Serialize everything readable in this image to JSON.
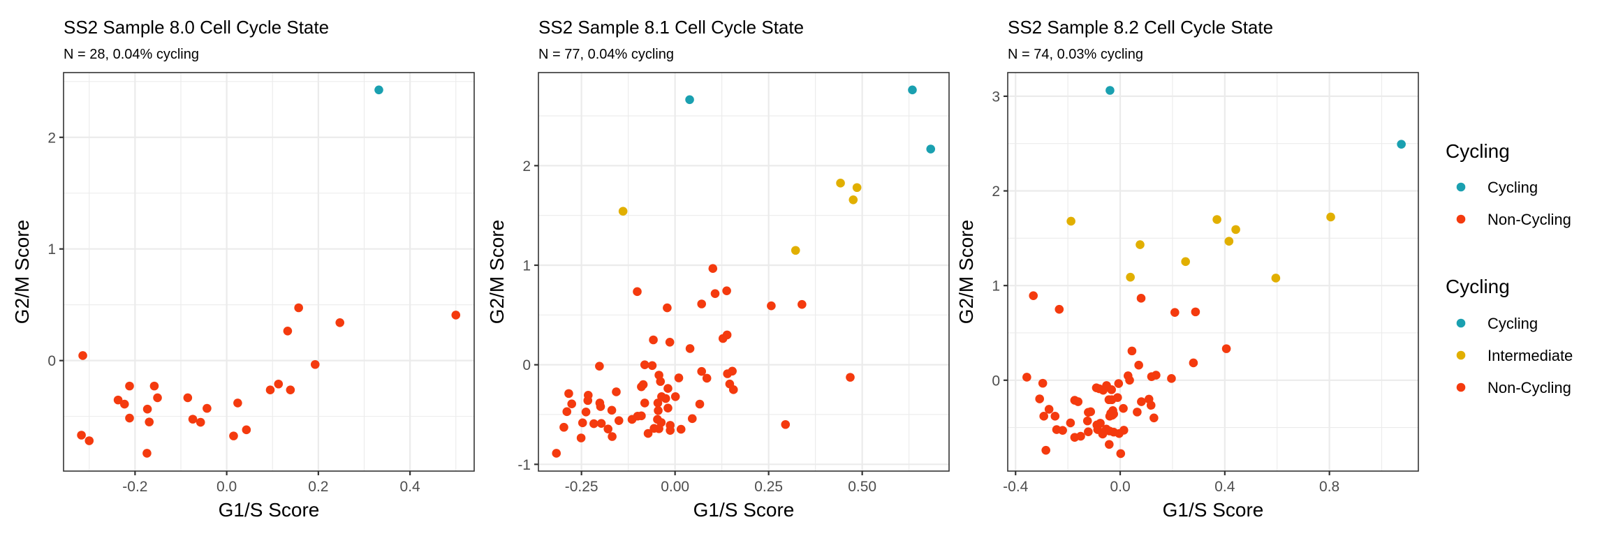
{
  "chart_data": [
    {
      "type": "scatter",
      "title": "SS2 Sample 8.0 Cell Cycle State",
      "subtitle": "N = 28, 0.04% cycling",
      "xlabel": "G1/S Score",
      "ylabel": "G2/M Score",
      "xlim": [
        -0.356,
        0.54
      ],
      "ylim": [
        -0.99,
        2.58
      ],
      "xticks": [
        -0.2,
        0.0,
        0.2,
        0.4
      ],
      "xtick_labels": [
        "-0.2",
        "0.0",
        "0.2",
        "0.4"
      ],
      "yticks": [
        0,
        1,
        2
      ],
      "ytick_labels": [
        "0",
        "1",
        "2"
      ],
      "x_minor": [
        -0.3,
        -0.1,
        0.1,
        0.3,
        0.5
      ],
      "y_minor": [
        -0.5,
        0.5,
        1.5,
        2.5
      ],
      "grid": true,
      "series": [
        {
          "name": "Cycling",
          "color": "#1AA0B0",
          "points": [
            [
              0.332,
              2.425
            ]
          ]
        },
        {
          "name": "Non-Cycling",
          "color": "#F43A0E",
          "points": [
            [
              0.157,
              0.473
            ],
            [
              0.247,
              0.34
            ],
            [
              0.5,
              0.408
            ],
            [
              0.133,
              0.265
            ],
            [
              0.193,
              -0.035
            ],
            [
              -0.314,
              0.045
            ],
            [
              -0.212,
              -0.228
            ],
            [
              -0.158,
              -0.228
            ],
            [
              -0.237,
              -0.353
            ],
            [
              -0.223,
              -0.39
            ],
            [
              -0.151,
              -0.333
            ],
            [
              -0.173,
              -0.435
            ],
            [
              -0.212,
              -0.515
            ],
            [
              -0.169,
              -0.55
            ],
            [
              -0.085,
              -0.333
            ],
            [
              -0.074,
              -0.525
            ],
            [
              -0.057,
              -0.553
            ],
            [
              -0.043,
              -0.428
            ],
            [
              0.024,
              -0.38
            ],
            [
              0.015,
              -0.675
            ],
            [
              0.043,
              -0.62
            ],
            [
              0.095,
              -0.263
            ],
            [
              0.113,
              -0.21
            ],
            [
              0.139,
              -0.263
            ],
            [
              -0.317,
              -0.668
            ],
            [
              -0.3,
              -0.718
            ],
            [
              -0.174,
              -0.83
            ]
          ]
        }
      ]
    },
    {
      "type": "scatter",
      "title": "SS2 Sample 8.1 Cell Cycle State",
      "subtitle": "N = 77, 0.04% cycling",
      "xlabel": "G1/S Score",
      "ylabel": "G2/M Score",
      "xlim": [
        -0.365,
        0.732
      ],
      "ylim": [
        -1.068,
        2.935
      ],
      "xticks": [
        -0.25,
        0.0,
        0.25,
        0.5
      ],
      "xtick_labels": [
        "-0.25",
        "0.00",
        "0.25",
        "0.50"
      ],
      "yticks": [
        -1,
        0,
        1,
        2
      ],
      "ytick_labels": [
        "-1",
        "0",
        "1",
        "2"
      ],
      "x_minor": [
        -0.125,
        0.125,
        0.375,
        0.625
      ],
      "y_minor": [
        -0.5,
        0.5,
        1.5,
        2.5
      ],
      "grid": true,
      "series": [
        {
          "name": "Cycling",
          "color": "#1AA0B0",
          "points": [
            [
              0.039,
              2.663
            ],
            [
              0.634,
              2.761
            ],
            [
              0.683,
              2.167
            ]
          ]
        },
        {
          "name": "Intermediate",
          "color": "#E1AF00",
          "points": [
            [
              -0.139,
              1.542
            ],
            [
              0.442,
              1.825
            ],
            [
              0.486,
              1.78
            ],
            [
              0.476,
              1.657
            ],
            [
              0.322,
              1.149
            ]
          ]
        },
        {
          "name": "Non-Cycling",
          "color": "#F43A0E",
          "points": [
            [
              0.101,
              0.967
            ],
            [
              -0.101,
              0.735
            ],
            [
              0.107,
              0.715
            ],
            [
              0.138,
              0.743
            ],
            [
              0.071,
              0.611
            ],
            [
              -0.021,
              0.572
            ],
            [
              0.257,
              0.592
            ],
            [
              0.339,
              0.606
            ],
            [
              -0.058,
              0.25
            ],
            [
              -0.014,
              0.227
            ],
            [
              0.04,
              0.163
            ],
            [
              0.128,
              0.264
            ],
            [
              0.139,
              0.3
            ],
            [
              -0.202,
              -0.014
            ],
            [
              -0.081,
              0.0
            ],
            [
              -0.061,
              -0.008
            ],
            [
              -0.043,
              -0.104
            ],
            [
              -0.039,
              -0.168
            ],
            [
              0.01,
              -0.132
            ],
            [
              0.071,
              -0.067
            ],
            [
              0.085,
              -0.135
            ],
            [
              0.14,
              -0.09
            ],
            [
              0.153,
              -0.064
            ],
            [
              0.146,
              -0.193
            ],
            [
              0.156,
              -0.25
            ],
            [
              0.468,
              -0.126
            ],
            [
              -0.09,
              -0.221
            ],
            [
              -0.085,
              -0.199
            ],
            [
              -0.019,
              -0.238
            ],
            [
              -0.157,
              -0.272
            ],
            [
              -0.284,
              -0.289
            ],
            [
              -0.232,
              -0.306
            ],
            [
              -0.036,
              -0.32
            ],
            [
              -0.025,
              -0.339
            ],
            [
              0.001,
              -0.32
            ],
            [
              -0.233,
              -0.359
            ],
            [
              -0.276,
              -0.393
            ],
            [
              -0.201,
              -0.384
            ],
            [
              -0.199,
              -0.42
            ],
            [
              -0.081,
              -0.384
            ],
            [
              -0.046,
              -0.384
            ],
            [
              0.066,
              -0.395
            ],
            [
              -0.019,
              -0.435
            ],
            [
              -0.289,
              -0.471
            ],
            [
              -0.238,
              -0.474
            ],
            [
              -0.169,
              -0.457
            ],
            [
              -0.045,
              -0.46
            ],
            [
              -0.115,
              -0.549
            ],
            [
              -0.1,
              -0.516
            ],
            [
              -0.09,
              -0.513
            ],
            [
              -0.15,
              -0.561
            ],
            [
              -0.047,
              -0.549
            ],
            [
              -0.037,
              -0.58
            ],
            [
              0.046,
              -0.541
            ],
            [
              -0.247,
              -0.583
            ],
            [
              -0.217,
              -0.592
            ],
            [
              -0.197,
              -0.589
            ],
            [
              -0.297,
              -0.628
            ],
            [
              -0.179,
              -0.645
            ],
            [
              -0.056,
              -0.639
            ],
            [
              -0.043,
              -0.642
            ],
            [
              -0.013,
              -0.608
            ],
            [
              -0.013,
              -0.659
            ],
            [
              0.016,
              -0.648
            ],
            [
              -0.072,
              -0.69
            ],
            [
              0.295,
              -0.6
            ],
            [
              -0.251,
              -0.735
            ],
            [
              -0.168,
              -0.721
            ],
            [
              -0.317,
              -0.889
            ]
          ]
        }
      ]
    },
    {
      "type": "scatter",
      "title": "SS2 Sample 8.2 Cell Cycle State",
      "subtitle": "N = 74, 0.03% cycling",
      "xlabel": "G1/S Score",
      "ylabel": "G2/M Score",
      "xlim": [
        -0.43,
        1.14
      ],
      "ylim": [
        -0.96,
        3.25
      ],
      "xticks": [
        -0.4,
        0.0,
        0.4,
        0.8
      ],
      "xtick_labels": [
        "-0.4",
        "0.0",
        "0.4",
        "0.8"
      ],
      "yticks": [
        0,
        1,
        2,
        3
      ],
      "ytick_labels": [
        "0",
        "1",
        "2",
        "3"
      ],
      "x_minor": [
        -0.2,
        0.2,
        0.6,
        1.0
      ],
      "y_minor": [
        -0.5,
        0.5,
        1.5,
        2.5
      ],
      "grid": true,
      "series": [
        {
          "name": "Cycling",
          "color": "#1AA0B0",
          "points": [
            [
              -0.039,
              3.062
            ],
            [
              1.075,
              2.493
            ]
          ]
        },
        {
          "name": "Intermediate",
          "color": "#E1AF00",
          "points": [
            [
              -0.188,
              1.68
            ],
            [
              0.37,
              1.698
            ],
            [
              0.442,
              1.592
            ],
            [
              0.416,
              1.468
            ],
            [
              0.805,
              1.724
            ],
            [
              0.076,
              1.432
            ],
            [
              0.25,
              1.253
            ],
            [
              0.039,
              1.088
            ],
            [
              0.595,
              1.079
            ]
          ]
        },
        {
          "name": "Non-Cycling",
          "color": "#F43A0E",
          "points": [
            [
              -0.332,
              0.893
            ],
            [
              -0.233,
              0.749
            ],
            [
              0.08,
              0.866
            ],
            [
              0.209,
              0.716
            ],
            [
              0.288,
              0.722
            ],
            [
              0.045,
              0.309
            ],
            [
              0.406,
              0.333
            ],
            [
              0.071,
              0.159
            ],
            [
              0.28,
              0.183
            ],
            [
              -0.357,
              0.032
            ],
            [
              -0.296,
              -0.032
            ],
            [
              0.03,
              0.047
            ],
            [
              0.036,
              0.0
            ],
            [
              0.12,
              0.038
            ],
            [
              0.137,
              0.053
            ],
            [
              0.196,
              0.018
            ],
            [
              -0.006,
              -0.035
            ],
            [
              -0.091,
              -0.08
            ],
            [
              -0.065,
              -0.106
            ],
            [
              -0.052,
              -0.056
            ],
            [
              -0.033,
              -0.1
            ],
            [
              -0.308,
              -0.197
            ],
            [
              -0.174,
              -0.212
            ],
            [
              -0.161,
              -0.227
            ],
            [
              -0.043,
              -0.206
            ],
            [
              -0.032,
              -0.206
            ],
            [
              -0.01,
              -0.183
            ],
            [
              0.081,
              -0.227
            ],
            [
              0.11,
              -0.2
            ],
            [
              0.118,
              -0.265
            ],
            [
              -0.272,
              -0.307
            ],
            [
              -0.122,
              -0.339
            ],
            [
              -0.113,
              -0.333
            ],
            [
              -0.028,
              -0.321
            ],
            [
              -0.025,
              -0.357
            ],
            [
              -0.04,
              -0.38
            ],
            [
              0.012,
              -0.298
            ],
            [
              0.065,
              -0.336
            ],
            [
              -0.292,
              -0.38
            ],
            [
              -0.249,
              -0.38
            ],
            [
              0.129,
              -0.398
            ],
            [
              -0.19,
              -0.451
            ],
            [
              -0.125,
              -0.43
            ],
            [
              -0.089,
              -0.472
            ],
            [
              -0.076,
              -0.454
            ],
            [
              -0.243,
              -0.522
            ],
            [
              -0.22,
              -0.53
            ],
            [
              -0.122,
              -0.545
            ],
            [
              -0.086,
              -0.522
            ],
            [
              -0.053,
              -0.516
            ],
            [
              -0.067,
              -0.569
            ],
            [
              -0.041,
              -0.536
            ],
            [
              -0.025,
              -0.548
            ],
            [
              -0.004,
              -0.563
            ],
            [
              0.014,
              -0.528
            ],
            [
              -0.174,
              -0.604
            ],
            [
              -0.151,
              -0.592
            ],
            [
              -0.284,
              -0.74
            ],
            [
              -0.042,
              -0.678
            ],
            [
              0.002,
              -0.775
            ],
            [
              -0.036,
              -0.35
            ],
            [
              -0.03,
              -0.37
            ],
            [
              -0.08,
              -0.09
            ]
          ]
        }
      ]
    }
  ],
  "legends": [
    {
      "title": "Cycling",
      "entries": [
        {
          "label": "Cycling",
          "color": "#1AA0B0"
        },
        {
          "label": "Non-Cycling",
          "color": "#F43A0E"
        }
      ]
    },
    {
      "title": "Cycling",
      "entries": [
        {
          "label": "Cycling",
          "color": "#1AA0B0"
        },
        {
          "label": "Intermediate",
          "color": "#E1AF00"
        },
        {
          "label": "Non-Cycling",
          "color": "#F43A0E"
        }
      ]
    }
  ]
}
